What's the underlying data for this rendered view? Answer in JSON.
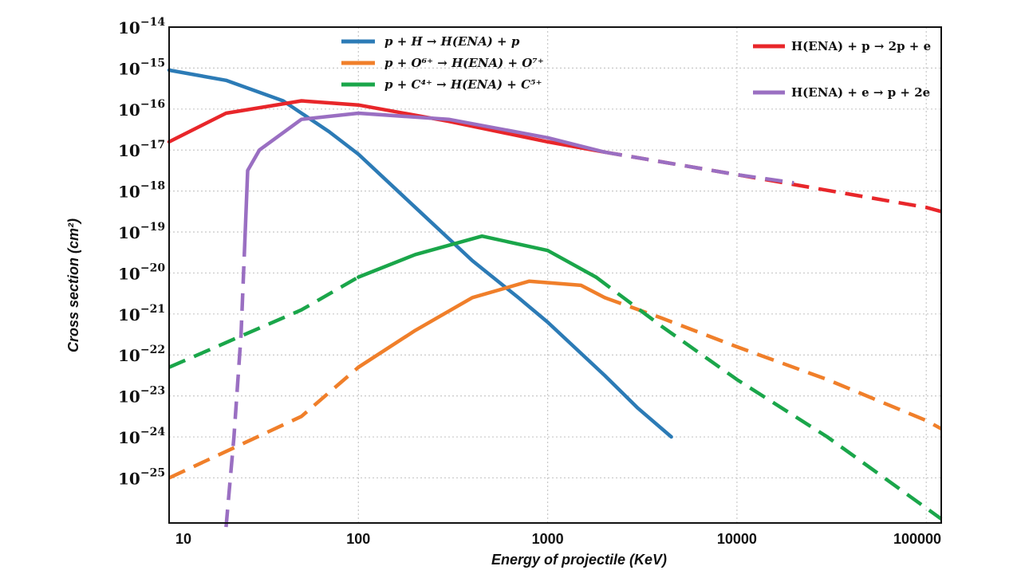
{
  "chart_data": {
    "type": "line",
    "title": "",
    "xlabel": "Energy of projectile (KeV)",
    "ylabel": "Cross section (cm²)",
    "xscale": "log",
    "yscale": "log",
    "xlim": [
      10,
      120000
    ],
    "ylim_exponents": [
      -26.1,
      -14
    ],
    "grid": true,
    "x_tick_labels": [
      "10",
      "100",
      "1000",
      "10000",
      "100000"
    ],
    "y_tick_labels": [
      {
        "base": "10",
        "exp": "−14"
      },
      {
        "base": "10",
        "exp": "−15"
      },
      {
        "base": "10",
        "exp": "−16"
      },
      {
        "base": "10",
        "exp": "−17"
      },
      {
        "base": "10",
        "exp": "−18"
      },
      {
        "base": "10",
        "exp": "−19"
      },
      {
        "base": "10",
        "exp": "−20"
      },
      {
        "base": "10",
        "exp": "−21"
      },
      {
        "base": "10",
        "exp": "−22"
      },
      {
        "base": "10",
        "exp": "−23"
      },
      {
        "base": "10",
        "exp": "−24"
      },
      {
        "base": "10",
        "exp": "−25"
      }
    ],
    "legend_left": [
      {
        "series": "p+H",
        "label": "p + H → H(ENA) + p"
      },
      {
        "series": "p+O6+",
        "label": "p + O⁶⁺ → H(ENA) + O⁷⁺"
      },
      {
        "series": "p+C4+",
        "label": "p + C⁴⁺ → H(ENA) + C⁵⁺"
      }
    ],
    "legend_right": [
      {
        "series": "Hp",
        "label": "H(ENA) + p → 2p + e"
      },
      {
        "series": "He",
        "label": "H(ENA) + e → p + 2e"
      }
    ],
    "series": [
      {
        "name": "p+H",
        "color": "#2c7bb6",
        "solid": [
          [
            10,
            -15.05
          ],
          [
            20,
            -15.3
          ],
          [
            40,
            -15.8
          ],
          [
            70,
            -16.55
          ],
          [
            100,
            -17.1
          ],
          [
            200,
            -18.4
          ],
          [
            400,
            -19.7
          ],
          [
            700,
            -20.6
          ],
          [
            1000,
            -21.2
          ],
          [
            2000,
            -22.5
          ],
          [
            3000,
            -23.3
          ],
          [
            4500,
            -24.0
          ]
        ],
        "dashed": []
      },
      {
        "name": "p+O6+",
        "color": "#f07f2a",
        "dashed_pre": [
          [
            10,
            -25.0
          ],
          [
            50,
            -23.5
          ],
          [
            100,
            -22.3
          ]
        ],
        "solid": [
          [
            100,
            -22.3
          ],
          [
            200,
            -21.4
          ],
          [
            400,
            -20.6
          ],
          [
            800,
            -20.2
          ],
          [
            1500,
            -20.3
          ],
          [
            2000,
            -20.6
          ]
        ],
        "dashed": [
          [
            2000,
            -20.6
          ],
          [
            4000,
            -21.1
          ],
          [
            10000,
            -21.8
          ],
          [
            30000,
            -22.6
          ],
          [
            100000,
            -23.6
          ],
          [
            120000,
            -23.8
          ]
        ]
      },
      {
        "name": "p+C4+",
        "color": "#1aa64a",
        "dashed_pre": [
          [
            10,
            -22.3
          ],
          [
            50,
            -20.9
          ],
          [
            100,
            -20.1
          ]
        ],
        "solid": [
          [
            100,
            -20.1
          ],
          [
            200,
            -19.55
          ],
          [
            450,
            -19.1
          ],
          [
            1000,
            -19.45
          ],
          [
            1800,
            -20.1
          ]
        ],
        "dashed": [
          [
            1800,
            -20.1
          ],
          [
            4000,
            -21.3
          ],
          [
            10000,
            -22.6
          ],
          [
            30000,
            -24.0
          ],
          [
            120000,
            -26.0
          ]
        ]
      },
      {
        "name": "Hp",
        "color": "#e8262a",
        "solid": [
          [
            10,
            -16.8
          ],
          [
            20,
            -16.1
          ],
          [
            50,
            -15.8
          ],
          [
            100,
            -15.9
          ],
          [
            300,
            -16.3
          ],
          [
            1000,
            -16.8
          ],
          [
            2000,
            -17.05
          ]
        ],
        "dashed": [
          [
            2000,
            -17.05
          ],
          [
            10000,
            -17.6
          ],
          [
            100000,
            -18.4
          ],
          [
            120000,
            -18.5
          ]
        ]
      },
      {
        "name": "He",
        "color": "#9a6fc2",
        "dashed_pre": [
          [
            20,
            -26.2
          ],
          [
            22,
            -24.0
          ],
          [
            24,
            -21.5
          ],
          [
            25,
            -19.5
          ]
        ],
        "solid": [
          [
            25,
            -19.5
          ],
          [
            26,
            -17.5
          ],
          [
            30,
            -17.0
          ],
          [
            50,
            -16.25
          ],
          [
            100,
            -16.1
          ],
          [
            300,
            -16.25
          ],
          [
            1000,
            -16.7
          ],
          [
            2000,
            -17.05
          ]
        ],
        "dashed": [
          [
            2000,
            -17.05
          ],
          [
            10000,
            -17.6
          ],
          [
            20000,
            -17.8
          ]
        ]
      }
    ]
  }
}
